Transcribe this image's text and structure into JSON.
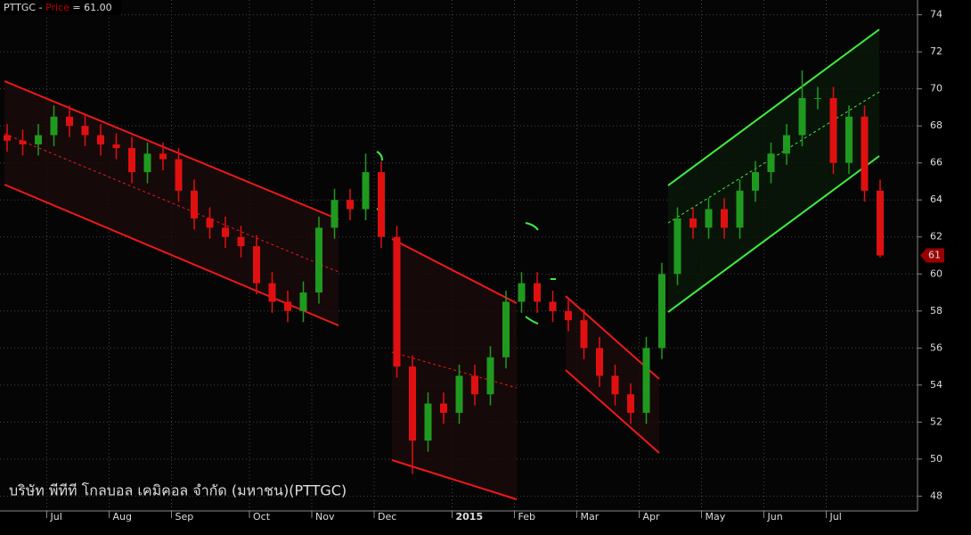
{
  "chart_data": {
    "type": "candlestick",
    "symbol": "PTTGC -",
    "price_label": "Price",
    "price_text": "= 61.00",
    "company": "บริษัท พีทีที โกลบอล เคมิคอล จำกัด (มหาชน)(PTTGC)",
    "categories": [
      null,
      null,
      null,
      "Jul",
      null,
      null,
      null,
      "Aug",
      null,
      null,
      null,
      "Sep",
      null,
      null,
      null,
      null,
      "Oct",
      null,
      null,
      null,
      "Nov",
      null,
      null,
      null,
      "Dec",
      null,
      null,
      null,
      null,
      "2015",
      null,
      null,
      null,
      "Feb",
      null,
      null,
      null,
      "Mar",
      null,
      null,
      null,
      "Apr",
      null,
      null,
      null,
      "May",
      null,
      null,
      null,
      "Jun",
      null,
      null,
      null,
      "Jul",
      null,
      null,
      null
    ],
    "open": [
      67.5,
      67.2,
      67.0,
      67.5,
      68.5,
      68.0,
      67.5,
      67.0,
      66.8,
      65.5,
      66.5,
      66.2,
      64.5,
      63.0,
      62.5,
      62.0,
      61.5,
      59.5,
      58.5,
      58.0,
      59.0,
      62.5,
      64.0,
      63.5,
      65.5,
      62.0,
      55.0,
      51.0,
      53.0,
      52.5,
      54.5,
      53.5,
      55.5,
      58.5,
      59.5,
      58.5,
      58.0,
      57.5,
      56.0,
      54.5,
      53.5,
      52.5,
      56.0,
      60.0,
      63.0,
      62.5,
      63.5,
      62.5,
      64.5,
      65.5,
      66.5,
      67.5,
      69.5,
      69.5,
      66.0,
      68.5,
      64.5
    ],
    "high": [
      68.1,
      67.8,
      68.1,
      69.1,
      69.1,
      68.6,
      68.1,
      67.6,
      67.4,
      67.1,
      67.1,
      66.8,
      65.1,
      63.6,
      63.1,
      62.6,
      62.1,
      60.1,
      59.1,
      59.6,
      63.1,
      64.6,
      64.6,
      66.5,
      66.1,
      62.6,
      55.6,
      53.6,
      53.6,
      55.1,
      55.1,
      56.1,
      59.1,
      60.1,
      60.1,
      59.1,
      58.6,
      58.1,
      56.6,
      55.1,
      54.1,
      56.6,
      60.6,
      63.6,
      63.6,
      64.1,
      64.1,
      65.1,
      66.1,
      67.1,
      68.1,
      71.0,
      70.1,
      70.1,
      69.1,
      69.1,
      65.1
    ],
    "low": [
      66.6,
      66.4,
      66.4,
      66.9,
      67.4,
      66.9,
      66.4,
      66.2,
      64.9,
      64.9,
      65.6,
      63.9,
      62.4,
      61.9,
      61.4,
      60.9,
      58.9,
      57.9,
      57.4,
      57.4,
      58.4,
      61.9,
      62.9,
      62.9,
      61.4,
      54.4,
      49.2,
      50.4,
      51.9,
      51.9,
      52.9,
      52.9,
      54.9,
      57.9,
      57.9,
      57.4,
      56.9,
      55.4,
      53.9,
      52.9,
      51.9,
      51.9,
      55.4,
      59.4,
      61.9,
      61.9,
      61.9,
      61.9,
      63.9,
      64.9,
      65.9,
      66.9,
      68.9,
      65.4,
      65.4,
      63.9,
      60.9
    ],
    "close": [
      67.2,
      67.0,
      67.5,
      68.5,
      68.0,
      67.5,
      67.0,
      66.8,
      65.5,
      66.5,
      66.2,
      64.5,
      63.0,
      62.5,
      62.0,
      61.5,
      59.5,
      58.5,
      58.0,
      59.0,
      62.5,
      64.0,
      63.5,
      65.5,
      62.0,
      55.0,
      51.0,
      53.0,
      52.5,
      54.5,
      53.5,
      55.5,
      58.5,
      59.5,
      58.5,
      58.0,
      57.5,
      56.0,
      54.5,
      53.5,
      52.5,
      56.0,
      60.0,
      63.0,
      62.5,
      63.5,
      62.5,
      64.5,
      65.5,
      66.5,
      67.5,
      69.5,
      69.5,
      66.0,
      68.5,
      64.5,
      61.0
    ],
    "last_value_label": "61",
    "up_color": "#1f9a1f",
    "down_color": "#e01010",
    "ylim": [
      47.2,
      74.8
    ],
    "yticks": [
      48,
      50,
      52,
      54,
      56,
      58,
      60,
      62,
      64,
      66,
      68,
      70,
      72,
      74
    ],
    "grid": true
  }
}
